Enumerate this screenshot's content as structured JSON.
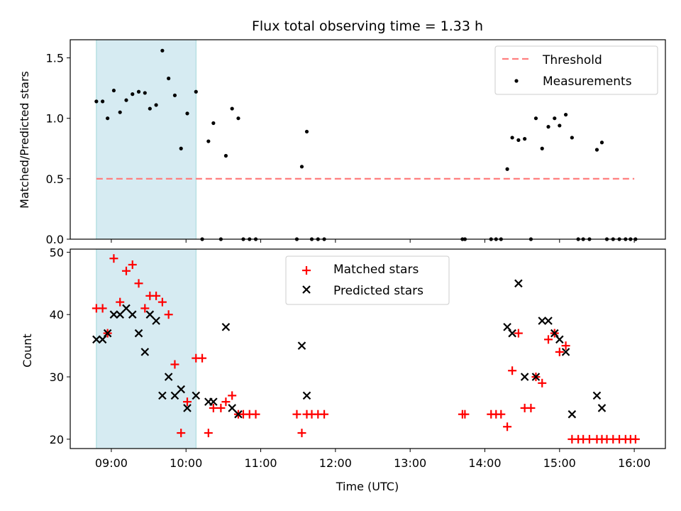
{
  "chart_data": [
    {
      "type": "scatter",
      "title": "Flux total observing time = 1.33 h",
      "xlabel": "",
      "ylabel": "Matched/Predicted stars",
      "xlim": [
        "08:27",
        "16:25"
      ],
      "ylim": [
        0,
        1.65
      ],
      "y_ticks": [
        "0.0",
        "0.5",
        "1.0",
        "1.5"
      ],
      "shaded_interval": [
        "08:48",
        "10:08"
      ],
      "legend_position": "top-right",
      "threshold": {
        "name": "Threshold",
        "value": 0.5,
        "x_start": "08:48",
        "x_end": "16:00",
        "color": "#ff7f7f"
      },
      "series": [
        {
          "name": "Measurements",
          "marker": "dot",
          "color": "#000000",
          "points": [
            [
              "08:48",
              1.14
            ],
            [
              "08:53",
              1.14
            ],
            [
              "08:57",
              1.0
            ],
            [
              "09:02",
              1.23
            ],
            [
              "09:07",
              1.05
            ],
            [
              "09:12",
              1.15
            ],
            [
              "09:17",
              1.2
            ],
            [
              "09:22",
              1.22
            ],
            [
              "09:27",
              1.21
            ],
            [
              "09:31",
              1.08
            ],
            [
              "09:36",
              1.11
            ],
            [
              "09:41",
              1.56
            ],
            [
              "09:46",
              1.33
            ],
            [
              "09:51",
              1.19
            ],
            [
              "09:56",
              0.75
            ],
            [
              "10:01",
              1.04
            ],
            [
              "10:08",
              1.22
            ],
            [
              "10:13",
              0.0
            ],
            [
              "10:18",
              0.81
            ],
            [
              "10:22",
              0.96
            ],
            [
              "10:28",
              0.0
            ],
            [
              "10:32",
              0.69
            ],
            [
              "10:37",
              1.08
            ],
            [
              "10:42",
              1.0
            ],
            [
              "10:46",
              0.0
            ],
            [
              "10:51",
              0.0
            ],
            [
              "10:56",
              0.0
            ],
            [
              "11:29",
              0.0
            ],
            [
              "11:33",
              0.6
            ],
            [
              "11:37",
              0.89
            ],
            [
              "11:41",
              0.0
            ],
            [
              "11:46",
              0.0
            ],
            [
              "11:51",
              0.0
            ],
            [
              "13:42",
              0.0
            ],
            [
              "13:44",
              0.0
            ],
            [
              "14:05",
              0.0
            ],
            [
              "14:09",
              0.0
            ],
            [
              "14:13",
              0.0
            ],
            [
              "14:18",
              0.58
            ],
            [
              "14:22",
              0.84
            ],
            [
              "14:27",
              0.82
            ],
            [
              "14:32",
              0.83
            ],
            [
              "14:37",
              0.0
            ],
            [
              "14:41",
              1.0
            ],
            [
              "14:46",
              0.75
            ],
            [
              "14:51",
              0.93
            ],
            [
              "14:56",
              1.0
            ],
            [
              "15:00",
              0.94
            ],
            [
              "15:05",
              1.03
            ],
            [
              "15:10",
              0.84
            ],
            [
              "15:15",
              0.0
            ],
            [
              "15:19",
              0.0
            ],
            [
              "15:24",
              0.0
            ],
            [
              "15:30",
              0.74
            ],
            [
              "15:34",
              0.8
            ],
            [
              "15:38",
              0.0
            ],
            [
              "15:43",
              0.0
            ],
            [
              "15:48",
              0.0
            ],
            [
              "15:53",
              0.0
            ],
            [
              "15:57",
              0.0
            ],
            [
              "16:01",
              0.0
            ]
          ]
        }
      ]
    },
    {
      "type": "scatter",
      "title": "",
      "xlabel": "Time (UTC)",
      "ylabel": "Count",
      "xlim": [
        "08:27",
        "16:25"
      ],
      "ylim": [
        18.5,
        50.5
      ],
      "x_ticks": [
        "09:00",
        "10:00",
        "11:00",
        "12:00",
        "13:00",
        "14:00",
        "15:00",
        "16:00"
      ],
      "y_ticks": [
        "20",
        "30",
        "40",
        "50"
      ],
      "shaded_interval": [
        "08:48",
        "10:08"
      ],
      "legend_position": "top-center",
      "series": [
        {
          "name": "Matched stars",
          "marker": "plus",
          "color": "#ff0000",
          "points": [
            [
              "08:48",
              41
            ],
            [
              "08:53",
              41
            ],
            [
              "08:57",
              37
            ],
            [
              "09:02",
              49
            ],
            [
              "09:07",
              42
            ],
            [
              "09:12",
              47
            ],
            [
              "09:17",
              48
            ],
            [
              "09:22",
              45
            ],
            [
              "09:27",
              41
            ],
            [
              "09:31",
              43
            ],
            [
              "09:36",
              43
            ],
            [
              "09:41",
              42
            ],
            [
              "09:46",
              40
            ],
            [
              "09:51",
              32
            ],
            [
              "09:56",
              21
            ],
            [
              "10:01",
              26
            ],
            [
              "10:08",
              33
            ],
            [
              "10:13",
              33
            ],
            [
              "10:18",
              21
            ],
            [
              "10:22",
              25
            ],
            [
              "10:28",
              25
            ],
            [
              "10:32",
              26
            ],
            [
              "10:37",
              27
            ],
            [
              "10:42",
              24
            ],
            [
              "10:46",
              24
            ],
            [
              "10:51",
              24
            ],
            [
              "10:56",
              24
            ],
            [
              "11:29",
              24
            ],
            [
              "11:33",
              21
            ],
            [
              "11:37",
              24
            ],
            [
              "11:41",
              24
            ],
            [
              "11:46",
              24
            ],
            [
              "11:51",
              24
            ],
            [
              "13:42",
              24
            ],
            [
              "13:44",
              24
            ],
            [
              "14:05",
              24
            ],
            [
              "14:09",
              24
            ],
            [
              "14:13",
              24
            ],
            [
              "14:18",
              22
            ],
            [
              "14:22",
              31
            ],
            [
              "14:27",
              37
            ],
            [
              "14:32",
              25
            ],
            [
              "14:37",
              25
            ],
            [
              "14:41",
              30
            ],
            [
              "14:46",
              29
            ],
            [
              "14:51",
              36
            ],
            [
              "14:56",
              37
            ],
            [
              "15:00",
              34
            ],
            [
              "15:05",
              35
            ],
            [
              "15:10",
              20
            ],
            [
              "15:15",
              20
            ],
            [
              "15:19",
              20
            ],
            [
              "15:24",
              20
            ],
            [
              "15:30",
              20
            ],
            [
              "15:34",
              20
            ],
            [
              "15:38",
              20
            ],
            [
              "15:43",
              20
            ],
            [
              "15:48",
              20
            ],
            [
              "15:53",
              20
            ],
            [
              "15:57",
              20
            ],
            [
              "16:01",
              20
            ]
          ]
        },
        {
          "name": "Predicted stars",
          "marker": "x",
          "color": "#000000",
          "points": [
            [
              "08:48",
              36
            ],
            [
              "08:53",
              36
            ],
            [
              "08:57",
              37
            ],
            [
              "09:02",
              40
            ],
            [
              "09:07",
              40
            ],
            [
              "09:12",
              41
            ],
            [
              "09:17",
              40
            ],
            [
              "09:22",
              37
            ],
            [
              "09:27",
              34
            ],
            [
              "09:31",
              40
            ],
            [
              "09:36",
              39
            ],
            [
              "09:41",
              27
            ],
            [
              "09:46",
              30
            ],
            [
              "09:51",
              27
            ],
            [
              "09:56",
              28
            ],
            [
              "10:01",
              25
            ],
            [
              "10:08",
              27
            ],
            [
              "10:18",
              26
            ],
            [
              "10:22",
              26
            ],
            [
              "10:32",
              38
            ],
            [
              "10:37",
              25
            ],
            [
              "10:42",
              24
            ],
            [
              "11:33",
              35
            ],
            [
              "11:37",
              27
            ],
            [
              "14:18",
              38
            ],
            [
              "14:22",
              37
            ],
            [
              "14:27",
              45
            ],
            [
              "14:32",
              30
            ],
            [
              "14:41",
              30
            ],
            [
              "14:46",
              39
            ],
            [
              "14:51",
              39
            ],
            [
              "14:56",
              37
            ],
            [
              "15:00",
              36
            ],
            [
              "15:05",
              34
            ],
            [
              "15:10",
              24
            ],
            [
              "15:30",
              27
            ],
            [
              "15:34",
              25
            ]
          ]
        }
      ]
    }
  ]
}
